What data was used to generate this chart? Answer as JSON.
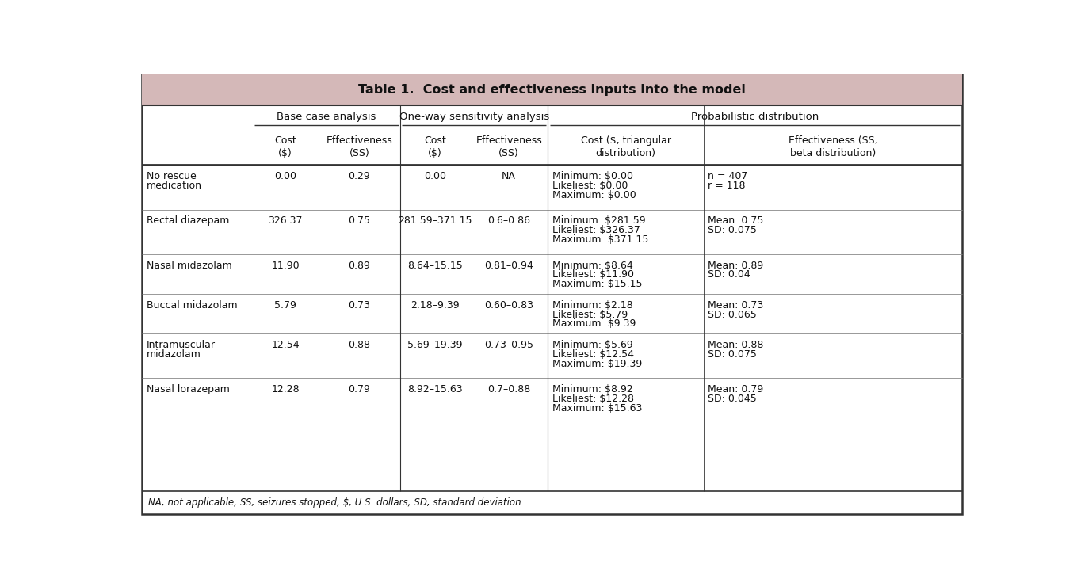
{
  "title": "Table 1.  Cost and effectiveness inputs into the model",
  "title_bg": "#d4b8b8",
  "footnote": "NA, not applicable; SS, seizures stopped; $, U.S. dollars; SD, standard deviation.",
  "group_headers": [
    "Base case analysis",
    "One-way sensitivity analysis",
    "Probabilistic distribution"
  ],
  "col_headers": [
    "Cost\n($)",
    "Effectiveness\n(SS)",
    "Cost\n($)",
    "Effectiveness\n(SS)",
    "Cost ($, triangular\ndistribution)",
    "Effectiveness (SS,\nbeta distribution)"
  ],
  "rows": [
    {
      "label": [
        "No rescue",
        "medication"
      ],
      "base_cost": "0.00",
      "base_eff": "0.29",
      "owa_cost": "0.00",
      "owa_eff": "NA",
      "prob_cost": [
        "Minimum: $0.00",
        "Likeliest: $0.00",
        "Maximum: $0.00"
      ],
      "prob_eff": [
        "n = 407",
        "r = 118"
      ]
    },
    {
      "label": [
        "Rectal diazepam"
      ],
      "base_cost": "326.37",
      "base_eff": "0.75",
      "owa_cost": "281.59–371.15",
      "owa_eff": "0.6–0.86",
      "prob_cost": [
        "Minimum: $281.59",
        "Likeliest: $326.37",
        "Maximum: $371.15"
      ],
      "prob_eff": [
        "Mean: 0.75",
        "SD: 0.075"
      ]
    },
    {
      "label": [
        "Nasal midazolam"
      ],
      "base_cost": "11.90",
      "base_eff": "0.89",
      "owa_cost": "8.64–15.15",
      "owa_eff": "0.81–0.94",
      "prob_cost": [
        "Minimum: $8.64",
        "Likeliest: $11.90",
        "Maximum: $15.15"
      ],
      "prob_eff": [
        "Mean: 0.89",
        "SD: 0.04"
      ]
    },
    {
      "label": [
        "Buccal midazolam"
      ],
      "base_cost": "5.79",
      "base_eff": "0.73",
      "owa_cost": "2.18–9.39",
      "owa_eff": "0.60–0.83",
      "prob_cost": [
        "Minimum: $2.18",
        "Likeliest: $5.79",
        "Maximum: $9.39"
      ],
      "prob_eff": [
        "Mean: 0.73",
        "SD: 0.065"
      ]
    },
    {
      "label": [
        "Intramuscular",
        "midazolam"
      ],
      "base_cost": "12.54",
      "base_eff": "0.88",
      "owa_cost": "5.69–19.39",
      "owa_eff": "0.73–0.95",
      "prob_cost": [
        "Minimum: $5.69",
        "Likeliest: $12.54",
        "Maximum: $19.39"
      ],
      "prob_eff": [
        "Mean: 0.88",
        "SD: 0.075"
      ]
    },
    {
      "label": [
        "Nasal lorazepam"
      ],
      "base_cost": "12.28",
      "base_eff": "0.79",
      "owa_cost": "8.92–15.63",
      "owa_eff": "0.7–0.88",
      "prob_cost": [
        "Minimum: $8.92",
        "Likeliest: $12.28",
        "Maximum: $15.63"
      ],
      "prob_eff": [
        "Mean: 0.79",
        "SD: 0.045"
      ]
    }
  ],
  "font_family": "DejaVu Sans",
  "font_size": 9.0,
  "title_font_size": 11.5,
  "group_font_size": 9.5,
  "col_header_font_size": 9.0,
  "data_font_size": 9.0,
  "footnote_font_size": 8.5,
  "line_color": "#333333",
  "text_color": "#111111"
}
